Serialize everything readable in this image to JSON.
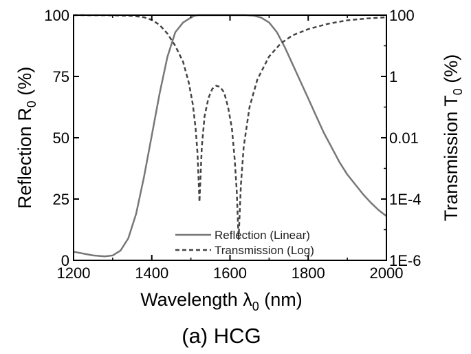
{
  "chart_data": {
    "type": "line",
    "xlabel": {
      "main": "Wavelength λ",
      "sub": "0",
      "tail": " (nm)"
    },
    "ylabel_left": {
      "main": "Reflection R",
      "sub": "0",
      "tail": " (%)"
    },
    "ylabel_right": {
      "main": "Transmission T",
      "sub": "0",
      "tail": " (%)"
    },
    "xlim": [
      1200,
      2000
    ],
    "ylim_left": [
      0,
      100
    ],
    "ylim_right_log": [
      1e-06,
      100
    ],
    "right_axis_scale": "log",
    "x_ticks": [
      "1200",
      "1400",
      "1600",
      "1800",
      "2000"
    ],
    "y_left_ticks": [
      "0",
      "25",
      "50",
      "75",
      "100"
    ],
    "y_right_ticks": [
      "1E-6",
      "1E-4",
      "0.01",
      "1",
      "100"
    ],
    "legend_position": "bottom-center",
    "grid": false,
    "series": [
      {
        "name": "Reflection (Linear)",
        "axis": "left",
        "style": "solid",
        "color": "#777777",
        "x": [
          1200,
          1250,
          1280,
          1300,
          1320,
          1340,
          1360,
          1380,
          1400,
          1420,
          1440,
          1460,
          1480,
          1500,
          1510,
          1520,
          1560,
          1600,
          1640,
          1660,
          1680,
          1700,
          1720,
          1740,
          1760,
          1780,
          1800,
          1820,
          1840,
          1860,
          1880,
          1900,
          1920,
          1940,
          1960,
          1980,
          2000
        ],
        "y": [
          3.5,
          2.0,
          1.6,
          2.0,
          4.0,
          9.0,
          19.0,
          34.0,
          51.0,
          68.0,
          83.0,
          93.0,
          97.0,
          99.0,
          99.8,
          100,
          100,
          100,
          100,
          99.8,
          99.0,
          97.0,
          93.0,
          87.0,
          80.0,
          73.0,
          66.0,
          59.0,
          52.0,
          46.0,
          40.0,
          35.0,
          31.0,
          27.0,
          23.5,
          20.5,
          18.0
        ]
      },
      {
        "name": "Transmission (Log)",
        "axis": "right",
        "style": "dashed",
        "color": "#444444",
        "x": [
          1200,
          1300,
          1350,
          1380,
          1400,
          1420,
          1440,
          1460,
          1480,
          1495,
          1505,
          1512,
          1517,
          1522,
          1528,
          1535,
          1545,
          1555,
          1565,
          1575,
          1585,
          1595,
          1605,
          1612,
          1617,
          1622,
          1628,
          1635,
          1650,
          1670,
          1700,
          1730,
          1760,
          1800,
          1850,
          1900,
          1950,
          2000
        ],
        "y": [
          100,
          99,
          95,
          85,
          70,
          48,
          25,
          10,
          3,
          0.6,
          0.12,
          0.02,
          0.003,
          8e-05,
          0.005,
          0.05,
          0.2,
          0.4,
          0.5,
          0.45,
          0.3,
          0.1,
          0.02,
          0.002,
          0.0002,
          5e-06,
          0.0003,
          0.005,
          0.1,
          0.8,
          4.5,
          12,
          22,
          35,
          52,
          68,
          78,
          85
        ]
      }
    ]
  },
  "caption": "(a) HCG"
}
